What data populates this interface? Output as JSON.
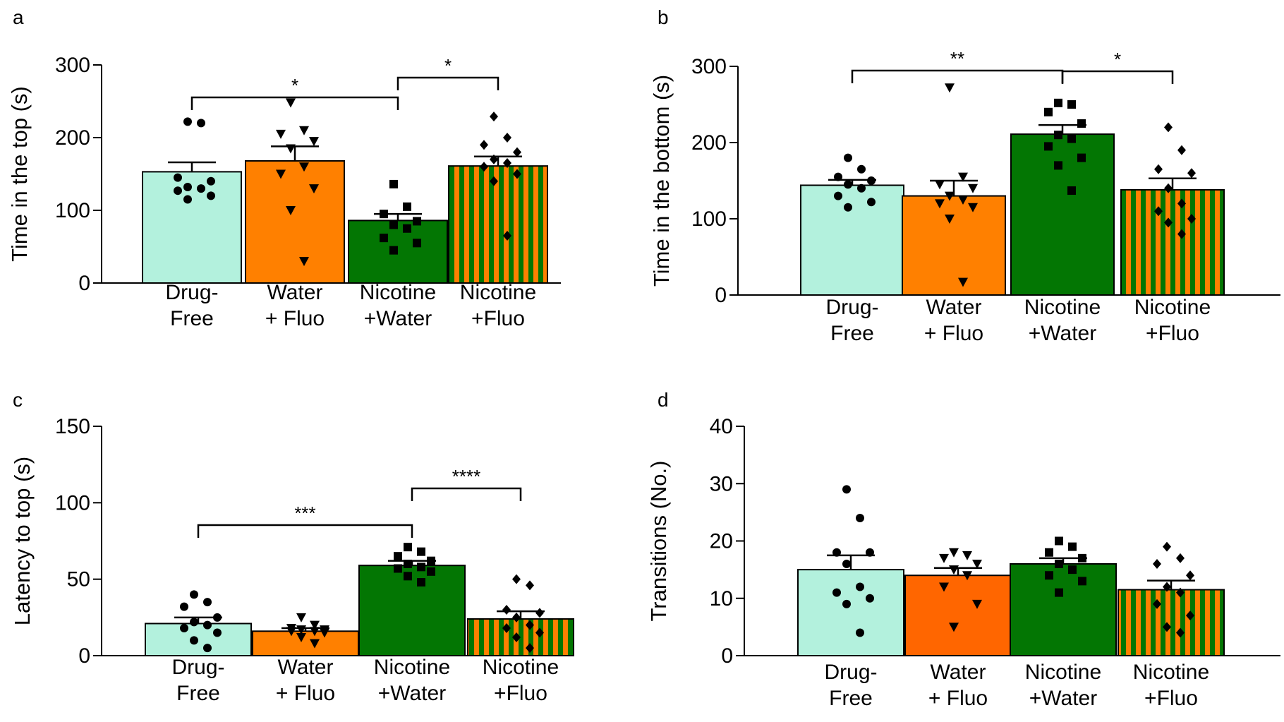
{
  "chart_data": [
    {
      "panel": "a",
      "type": "bar",
      "ylabel": "Time in the top (s)",
      "ylim": [
        0,
        300
      ],
      "yticks": [
        0,
        100,
        200,
        300
      ],
      "categories": [
        [
          "Drug-",
          "Free"
        ],
        [
          "Water",
          "+ Fluo"
        ],
        [
          "Nicotine",
          "+Water"
        ],
        [
          "Nicotine",
          "+Fluo"
        ]
      ],
      "series": [
        {
          "values": [
            153,
            168,
            86,
            161
          ],
          "sem": [
            13,
            20,
            9,
            13
          ],
          "points": [
            [
              222,
              220,
              145,
              140,
              132,
              130,
              127,
              120,
              115
            ],
            [
              248,
              210,
              205,
              195,
              185,
              160,
              150,
              130,
              100,
              30
            ],
            [
              136,
              105,
              95,
              85,
              80,
              75,
              62,
              55,
              45
            ],
            [
              229,
              200,
              190,
              180,
              170,
              165,
              160,
              150,
              140,
              65
            ]
          ]
        }
      ],
      "significance": [
        {
          "from": 0,
          "to": 2,
          "label": "*"
        },
        {
          "from": 2,
          "to": 3,
          "label": "*"
        }
      ],
      "colors": [
        "#b3f1dd",
        "#ff8000",
        "#037603",
        "stripes"
      ]
    },
    {
      "panel": "b",
      "type": "bar",
      "ylabel": "Time in the bottom (s)",
      "ylim": [
        0,
        300
      ],
      "yticks": [
        0,
        100,
        200,
        300
      ],
      "categories": [
        [
          "Drug-",
          "Free"
        ],
        [
          "Water",
          "+ Fluo"
        ],
        [
          "Nicotine",
          "+Water"
        ],
        [
          "Nicotine",
          "+Fluo"
        ]
      ],
      "series": [
        {
          "values": [
            144,
            130,
            211,
            138
          ],
          "sem": [
            7,
            20,
            12,
            15
          ],
          "points": [
            [
              180,
              165,
              155,
              150,
              145,
              140,
              130,
              122,
              115
            ],
            [
              272,
              155,
              145,
              140,
              130,
              125,
              120,
              115,
              100,
              17
            ],
            [
              252,
              250,
              240,
              225,
              210,
              205,
              195,
              180,
              170,
              137
            ],
            [
              220,
              190,
              165,
              160,
              140,
              120,
              110,
              100,
              95,
              80
            ]
          ]
        }
      ],
      "significance": [
        {
          "from": 0,
          "to": 2,
          "label": "**"
        },
        {
          "from": 2,
          "to": 3,
          "label": "*"
        }
      ],
      "colors": [
        "#b3f1dd",
        "#ff8000",
        "#037603",
        "stripes"
      ]
    },
    {
      "panel": "c",
      "type": "bar",
      "ylabel": "Latency to top (s)",
      "ylim": [
        0,
        150
      ],
      "yticks": [
        0,
        50,
        100,
        150
      ],
      "categories": [
        [
          "Drug-",
          "Free"
        ],
        [
          "Water",
          "+ Fluo"
        ],
        [
          "Nicotine",
          "+Water"
        ],
        [
          "Nicotine",
          "+Fluo"
        ]
      ],
      "series": [
        {
          "values": [
            21,
            16,
            59,
            24
          ],
          "sem": [
            4,
            2,
            3,
            5
          ],
          "points": [
            [
              40,
              35,
              32,
              25,
              22,
              20,
              18,
              15,
              10,
              5
            ],
            [
              25,
              20,
              18,
              17,
              17,
              16,
              16,
              15,
              12,
              8
            ],
            [
              71,
              68,
              65,
              62,
              60,
              58,
              57,
              55,
              52,
              48
            ],
            [
              50,
              46,
              30,
              28,
              25,
              20,
              18,
              15,
              12,
              5
            ]
          ]
        }
      ],
      "significance": [
        {
          "from": 0,
          "to": 2,
          "label": "***"
        },
        {
          "from": 2,
          "to": 3,
          "label": "****"
        }
      ],
      "colors": [
        "#b3f1dd",
        "#ff8000",
        "#037603",
        "stripes"
      ]
    },
    {
      "panel": "d",
      "type": "bar",
      "ylabel": "Transitions (No.)",
      "ylim": [
        0,
        40
      ],
      "yticks": [
        0,
        10,
        20,
        30,
        40
      ],
      "categories": [
        [
          "Drug-",
          "Free"
        ],
        [
          "Water",
          "+ Fluo"
        ],
        [
          "Nicotine",
          "+Water"
        ],
        [
          "Nicotine",
          "+Fluo"
        ]
      ],
      "series": [
        {
          "values": [
            15,
            14,
            16,
            11.5
          ],
          "sem": [
            2.5,
            1.3,
            1,
            1.6
          ],
          "points": [
            [
              29,
              24,
              18,
              18,
              16,
              12,
              11,
              10,
              9,
              4
            ],
            [
              18,
              17.5,
              17,
              16,
              15,
              14,
              12,
              9,
              5
            ],
            [
              20,
              19,
              18,
              17,
              16,
              15,
              14,
              13,
              11
            ],
            [
              19,
              17,
              16,
              14,
              12,
              11,
              9,
              7,
              5,
              4
            ]
          ]
        }
      ],
      "significance": [],
      "colors": [
        "#b3f1dd",
        "#ff6600",
        "#037603",
        "stripes"
      ]
    }
  ],
  "marker_shapes": [
    "circle",
    "triangle-down",
    "square",
    "diamond"
  ],
  "stripe_colors": [
    "#ff8000",
    "#037603"
  ]
}
